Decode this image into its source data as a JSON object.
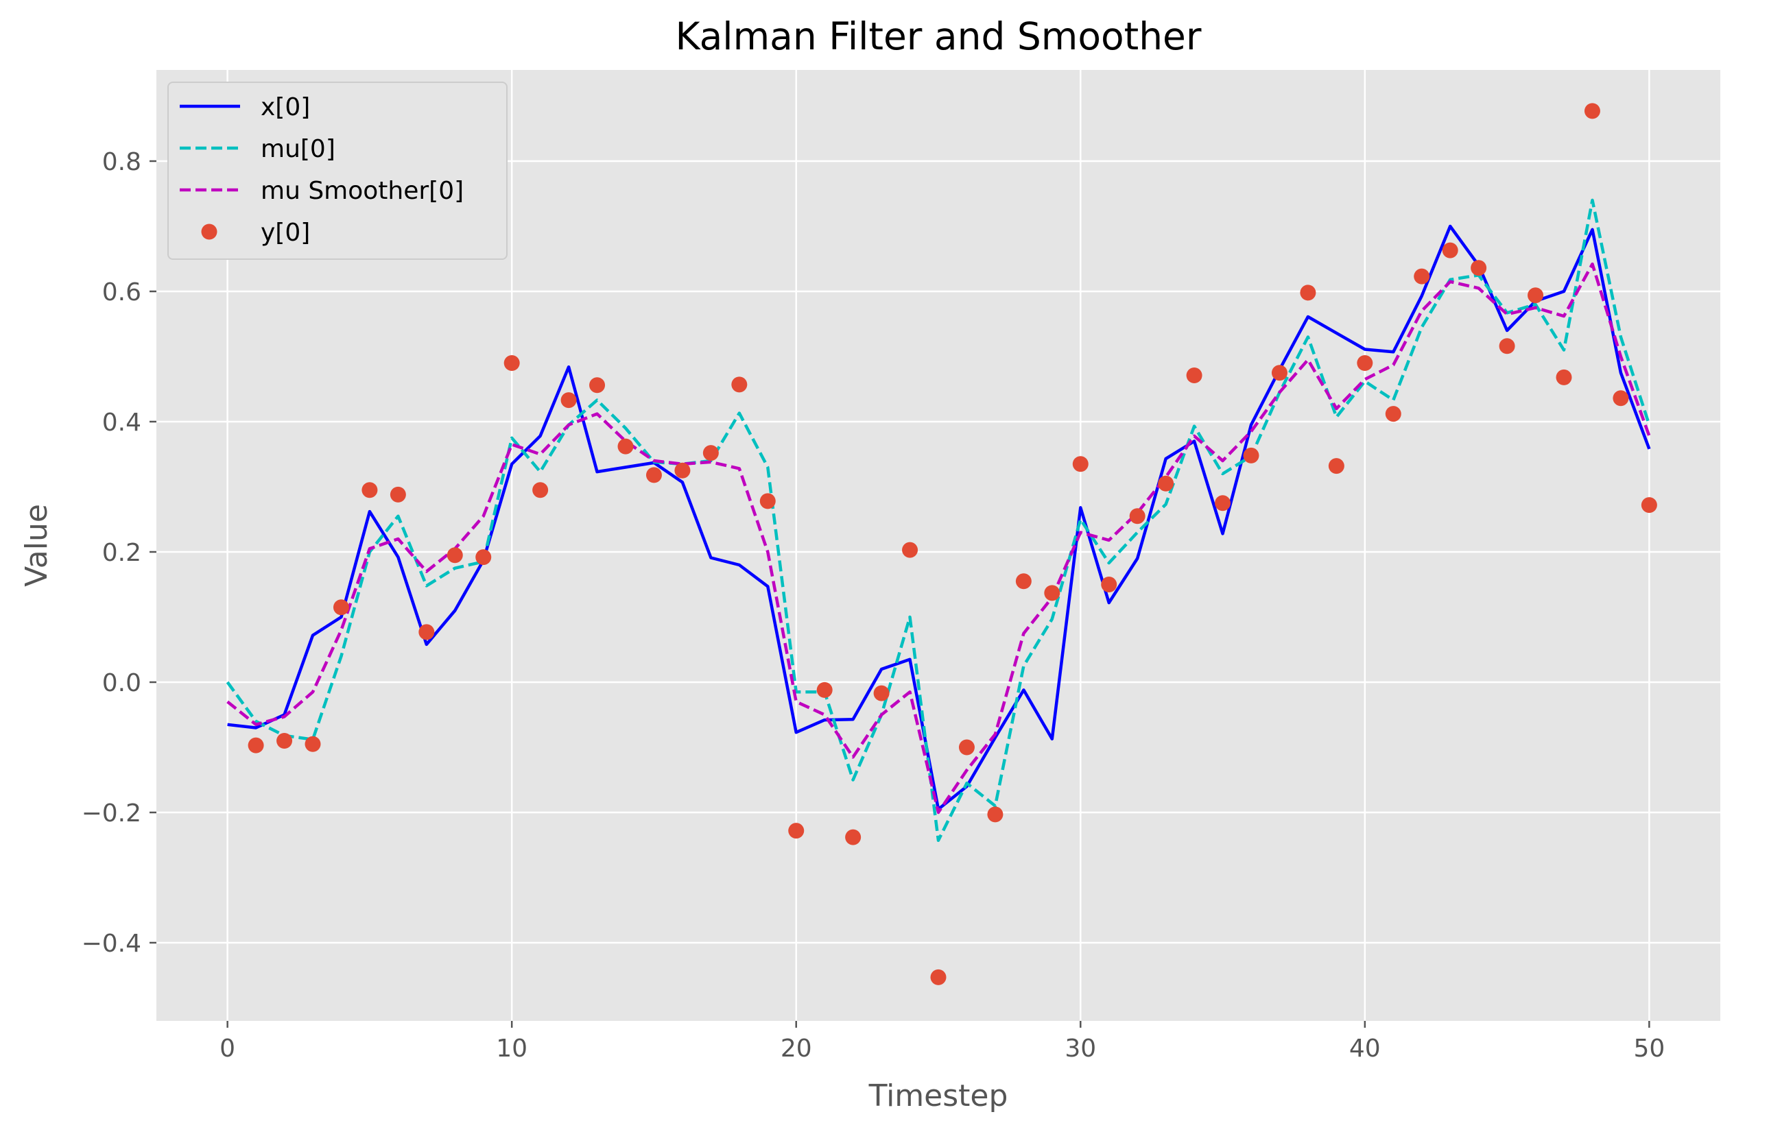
{
  "chart_data": {
    "type": "line",
    "title": "Kalman Filter and Smoother",
    "xlabel": "Timestep",
    "ylabel": "Value",
    "xlim": [
      -2.5,
      52.5
    ],
    "ylim": [
      -0.52,
      0.94
    ],
    "xticks": [
      0,
      10,
      20,
      30,
      40,
      50
    ],
    "xtick_labels": [
      "0",
      "10",
      "20",
      "30",
      "40",
      "50"
    ],
    "yticks": [
      -0.4,
      -0.2,
      0.0,
      0.2,
      0.4,
      0.6,
      0.8
    ],
    "ytick_labels": [
      "−0.4",
      "−0.2",
      "0.0",
      "0.2",
      "0.4",
      "0.6",
      "0.8"
    ],
    "grid": true,
    "legend_position": "upper-left",
    "background_color": "#e5e5e5",
    "grid_color": "#ffffff",
    "x": [
      0,
      1,
      2,
      3,
      4,
      5,
      6,
      7,
      8,
      9,
      10,
      11,
      12,
      13,
      14,
      15,
      16,
      17,
      18,
      19,
      20,
      21,
      22,
      23,
      24,
      25,
      26,
      27,
      28,
      29,
      30,
      31,
      32,
      33,
      34,
      35,
      36,
      37,
      38,
      39,
      40,
      41,
      42,
      43,
      44,
      45,
      46,
      47,
      48,
      49,
      50
    ],
    "series": [
      {
        "name": "x[0]",
        "kind": "line",
        "style": "solid",
        "color": "#0000ff",
        "values": [
          -0.065,
          -0.07,
          -0.05,
          0.072,
          0.1,
          0.262,
          0.192,
          0.058,
          0.11,
          0.187,
          0.335,
          0.378,
          0.484,
          0.323,
          0.33,
          0.337,
          0.307,
          0.191,
          0.18,
          0.147,
          -0.077,
          -0.058,
          -0.057,
          0.02,
          0.035,
          -0.195,
          -0.16,
          -0.085,
          -0.012,
          -0.087,
          0.268,
          0.122,
          0.19,
          0.343,
          0.37,
          0.228,
          0.395,
          0.48,
          0.561,
          0.536,
          0.511,
          0.507,
          0.593,
          0.7,
          0.64,
          0.54,
          0.585,
          0.6,
          0.695,
          0.475,
          0.358
        ]
      },
      {
        "name": "mu[0]",
        "kind": "line",
        "style": "dashed",
        "color": "#00bfbf",
        "values": [
          0.0,
          -0.06,
          -0.082,
          -0.088,
          0.04,
          0.2,
          0.255,
          0.148,
          0.175,
          0.185,
          0.375,
          0.323,
          0.395,
          0.433,
          0.39,
          0.338,
          0.335,
          0.34,
          0.413,
          0.33,
          -0.015,
          -0.015,
          -0.15,
          -0.05,
          0.1,
          -0.243,
          -0.155,
          -0.19,
          0.025,
          0.097,
          0.25,
          0.183,
          0.23,
          0.273,
          0.393,
          0.32,
          0.347,
          0.445,
          0.53,
          0.407,
          0.462,
          0.433,
          0.545,
          0.618,
          0.625,
          0.567,
          0.58,
          0.51,
          0.74,
          0.53,
          0.395
        ]
      },
      {
        "name": "mu Smoother[0]",
        "kind": "line",
        "style": "dashed",
        "color": "#bf00bf",
        "values": [
          -0.03,
          -0.065,
          -0.053,
          -0.015,
          0.08,
          0.205,
          0.22,
          0.17,
          0.205,
          0.255,
          0.365,
          0.35,
          0.395,
          0.412,
          0.37,
          0.34,
          0.335,
          0.338,
          0.328,
          0.2,
          -0.03,
          -0.05,
          -0.115,
          -0.05,
          -0.015,
          -0.2,
          -0.135,
          -0.08,
          0.075,
          0.13,
          0.23,
          0.218,
          0.26,
          0.315,
          0.378,
          0.34,
          0.385,
          0.445,
          0.495,
          0.42,
          0.465,
          0.487,
          0.57,
          0.615,
          0.605,
          0.565,
          0.575,
          0.562,
          0.642,
          0.5,
          0.378
        ]
      },
      {
        "name": "y[0]",
        "kind": "scatter",
        "color": "#e24a33",
        "x": [
          1,
          2,
          3,
          4,
          5,
          6,
          7,
          8,
          9,
          10,
          11,
          12,
          13,
          14,
          15,
          16,
          17,
          18,
          19,
          20,
          21,
          22,
          23,
          24,
          25,
          26,
          27,
          28,
          29,
          30,
          31,
          32,
          33,
          34,
          35,
          36,
          37,
          38,
          39,
          40,
          41,
          42,
          43,
          44,
          45,
          46,
          47,
          48,
          49,
          50
        ],
        "values": [
          -0.097,
          -0.09,
          -0.095,
          0.115,
          0.295,
          0.288,
          0.077,
          0.195,
          0.192,
          0.49,
          0.295,
          0.433,
          0.456,
          0.362,
          0.318,
          0.325,
          0.352,
          0.457,
          0.278,
          -0.228,
          -0.012,
          -0.238,
          -0.017,
          0.203,
          -0.453,
          -0.1,
          -0.203,
          0.155,
          0.137,
          0.335,
          0.15,
          0.255,
          0.305,
          0.471,
          0.275,
          0.348,
          0.475,
          0.598,
          0.332,
          0.49,
          0.412,
          0.623,
          0.663,
          0.636,
          0.516,
          0.594,
          0.468,
          0.877,
          0.436,
          0.272
        ]
      }
    ]
  }
}
